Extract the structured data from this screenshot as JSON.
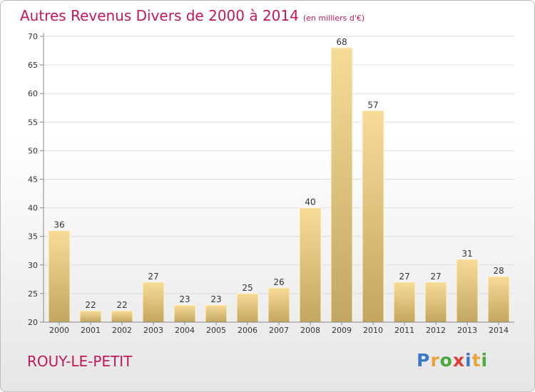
{
  "title": "Autres Revenus Divers de 2000 à 2014",
  "unit": "(en milliers d'€)",
  "town": "ROUY-LE-PETIT",
  "logo": {
    "text": "Proxiti",
    "letter_colors": [
      "#3b79c5",
      "#e8a33a",
      "#4aa83d",
      "#e23c36",
      "#3b79c5",
      "#e8a33a",
      "#4aa83d"
    ]
  },
  "colors": {
    "title": "#c2185b",
    "bar_top": "#f7dc98",
    "bar_bottom": "#c3a65f",
    "bar_edge": "#fdf4d8",
    "grid": "#dddddd",
    "axis": "#888888",
    "text": "#333333"
  },
  "chart_data": {
    "type": "bar",
    "categories": [
      "2000",
      "2001",
      "2002",
      "2003",
      "2004",
      "2005",
      "2006",
      "2007",
      "2008",
      "2009",
      "2010",
      "2011",
      "2012",
      "2013",
      "2014"
    ],
    "values": [
      36,
      22,
      22,
      27,
      23,
      23,
      25,
      26,
      40,
      68,
      57,
      27,
      27,
      31,
      28
    ],
    "ylim": [
      20,
      70
    ],
    "yticks": [
      20,
      25,
      30,
      35,
      40,
      45,
      50,
      55,
      60,
      65,
      70
    ],
    "grid": true,
    "data_labels": true
  }
}
